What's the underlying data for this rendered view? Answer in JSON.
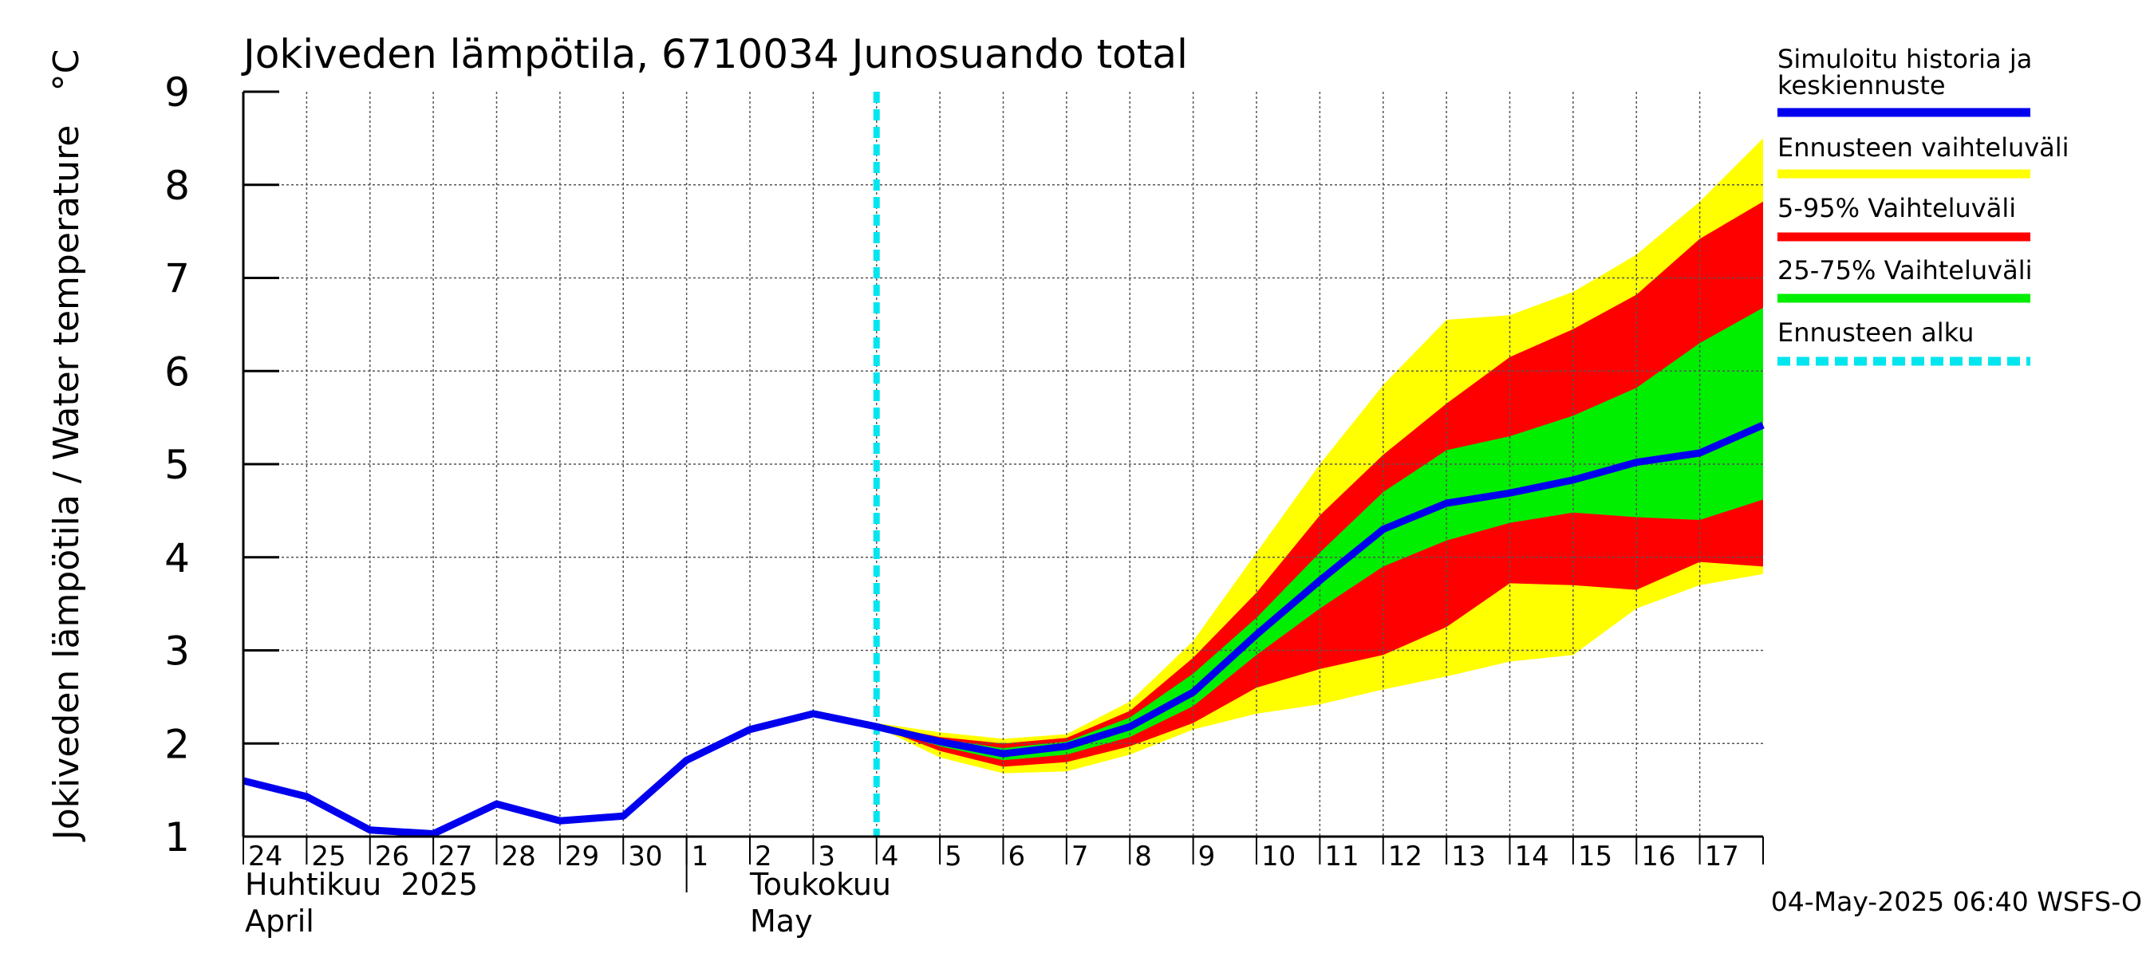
{
  "chart_data": {
    "type": "area",
    "title": "Jokiveden lämpötila, 6710034 Junosuando total",
    "ylabel": "Jokiveden lämpötila / Water temperature",
    "yunit": "°C",
    "ylim": [
      1,
      9
    ],
    "yticks": [
      "1",
      "2",
      "3",
      "4",
      "5",
      "6",
      "7",
      "8",
      "9"
    ],
    "xlim": [
      0,
      24
    ],
    "day_ticks": [
      "24",
      "25",
      "26",
      "27",
      "28",
      "29",
      "30",
      "1",
      "2",
      "3",
      "4",
      "5",
      "6",
      "7",
      "8",
      "9",
      "10",
      "11",
      "12",
      "13",
      "14",
      "15",
      "16",
      "17"
    ],
    "month_labels": [
      {
        "fi": "Huhtikuu  2025",
        "en": "April"
      },
      {
        "fi": "Toukokuu",
        "en": "May"
      }
    ],
    "forecast_start": 10,
    "timestamp": "04-May-2025 06:40 WSFS-O",
    "series": [
      {
        "name": "Simuloitu historia ja keskiennuste",
        "color": "#0000ee",
        "x": [
          0,
          1,
          2,
          3,
          4,
          5,
          6,
          7,
          8,
          9,
          10,
          11,
          12,
          13,
          14,
          15,
          16,
          17,
          18,
          19,
          20,
          21,
          22,
          23,
          24
        ],
        "values": [
          1.6,
          1.43,
          1.07,
          1.03,
          1.35,
          1.17,
          1.22,
          1.82,
          2.15,
          2.32,
          2.18,
          2.02,
          1.89,
          1.97,
          2.18,
          2.55,
          3.17,
          3.75,
          4.3,
          4.58,
          4.69,
          4.83,
          5.02,
          5.12,
          5.42
        ]
      }
    ],
    "bands": [
      {
        "name": "Ennusteen vaihteluväli",
        "color": "#ffff00",
        "x": [
          10,
          11,
          12,
          13,
          14,
          15,
          16,
          17,
          18,
          19,
          20,
          21,
          22,
          23,
          24
        ],
        "low": [
          2.18,
          1.85,
          1.68,
          1.7,
          1.88,
          2.15,
          2.32,
          2.42,
          2.58,
          2.72,
          2.88,
          2.95,
          3.45,
          3.7,
          3.82
        ],
        "high": [
          2.22,
          2.12,
          2.05,
          2.1,
          2.45,
          3.1,
          4.05,
          5.0,
          5.85,
          6.55,
          6.6,
          6.85,
          7.25,
          7.82,
          8.5
        ]
      },
      {
        "name": "5-95% Vaihteluväli",
        "color": "#ff0000",
        "x": [
          10,
          11,
          12,
          13,
          14,
          15,
          16,
          17,
          18,
          19,
          20,
          21,
          22,
          23,
          24
        ],
        "low": [
          2.18,
          1.92,
          1.75,
          1.8,
          1.97,
          2.22,
          2.6,
          2.8,
          2.95,
          3.25,
          3.72,
          3.7,
          3.65,
          3.95,
          3.9
        ],
        "high": [
          2.2,
          2.07,
          2.0,
          2.06,
          2.35,
          2.92,
          3.62,
          4.45,
          5.1,
          5.65,
          6.15,
          6.45,
          6.82,
          7.42,
          7.82
        ]
      },
      {
        "name": "25-75% Vaihteluväli",
        "color": "#00ee00",
        "x": [
          10,
          11,
          12,
          13,
          14,
          15,
          16,
          17,
          18,
          19,
          20,
          21,
          22,
          23,
          24
        ],
        "low": [
          2.18,
          1.97,
          1.82,
          1.88,
          2.07,
          2.4,
          2.95,
          3.45,
          3.9,
          4.18,
          4.37,
          4.48,
          4.43,
          4.4,
          4.62
        ],
        "high": [
          2.19,
          2.05,
          1.95,
          2.02,
          2.28,
          2.75,
          3.35,
          4.05,
          4.7,
          5.15,
          5.3,
          5.52,
          5.82,
          6.3,
          6.68
        ]
      }
    ],
    "legend": [
      {
        "label": "Simuloitu historia ja",
        "label2": "keskiennuste",
        "color": "#0000ee",
        "style": "solid"
      },
      {
        "label": "Ennusteen vaihteluväli",
        "color": "#ffff00",
        "style": "solid"
      },
      {
        "label": "5-95% Vaihteluväli",
        "color": "#ff0000",
        "style": "solid"
      },
      {
        "label": "25-75% Vaihteluväli",
        "color": "#00ee00",
        "style": "solid"
      },
      {
        "label": "Ennusteen alku",
        "color": "#00e5ee",
        "style": "dashed"
      }
    ],
    "forecast_line_color": "#00e5ee",
    "grid": true
  }
}
